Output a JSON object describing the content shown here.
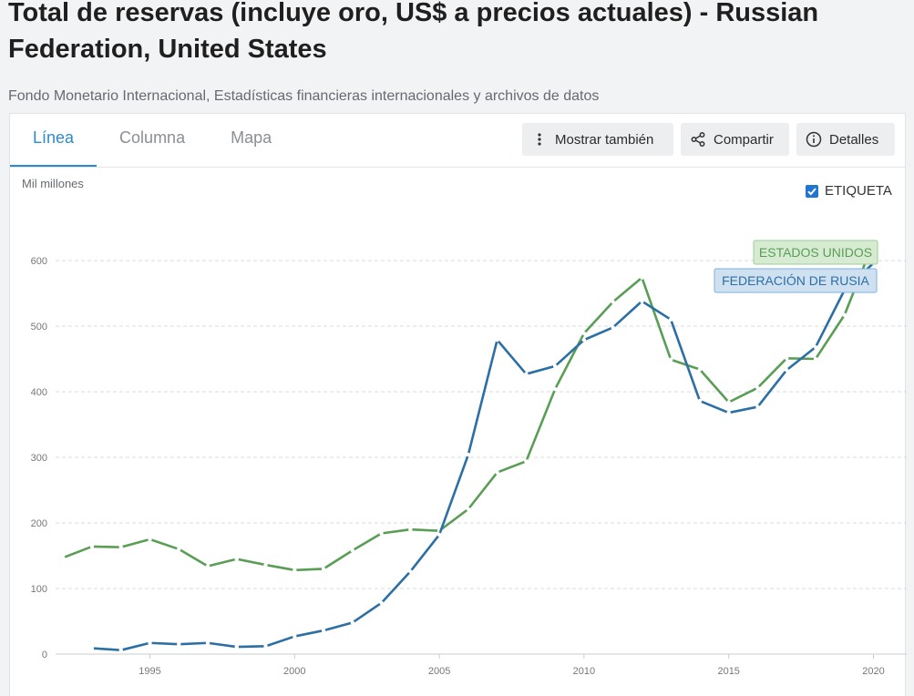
{
  "header": {
    "title": "Total de reservas (incluye oro, US$ a precios actuales) - Russian Federation, United States",
    "source": "Fondo Monetario Internacional, Estadísticas financieras internacionales y archivos de datos"
  },
  "tabs": [
    {
      "label": "Línea",
      "active": true
    },
    {
      "label": "Columna",
      "active": false
    },
    {
      "label": "Mapa",
      "active": false
    }
  ],
  "toolbar": {
    "show_also": "Mostrar también",
    "share": "Compartir",
    "details": "Detalles"
  },
  "label_toggle": {
    "label": "ETIQUETA",
    "checked": true
  },
  "colors": {
    "us": "#5a9e56",
    "ru": "#2c6fa5",
    "accent": "#2f8ac9"
  },
  "chart_data": {
    "type": "line",
    "ylabel": "Mil millones",
    "ylim": [
      0,
      600
    ],
    "yticks": [
      0,
      100,
      200,
      300,
      400,
      500,
      600
    ],
    "xticks": [
      1995,
      2000,
      2005,
      2010,
      2015,
      2020
    ],
    "xlim": [
      1992,
      2021
    ],
    "grid": true,
    "series": [
      {
        "name": "ESTADOS UNIDOS",
        "color": "#5a9e56",
        "x": [
          1992,
          1993,
          1994,
          1995,
          1996,
          1997,
          1998,
          1999,
          2000,
          2001,
          2002,
          2003,
          2004,
          2005,
          2006,
          2007,
          2008,
          2009,
          2010,
          2011,
          2012,
          2013,
          2014,
          2015,
          2016,
          2017,
          2018,
          2019,
          2020
        ],
        "values": [
          147,
          164,
          163,
          175,
          160,
          134,
          145,
          136,
          128,
          130,
          158,
          184,
          190,
          188,
          221,
          277,
          294,
          404,
          489,
          537,
          574,
          449,
          434,
          384,
          406,
          451,
          450,
          517,
          628
        ]
      },
      {
        "name": "FEDERACIÓN DE RUSIA",
        "color": "#2c6fa5",
        "x": [
          1993,
          1994,
          1995,
          1996,
          1997,
          1998,
          1999,
          2000,
          2001,
          2002,
          2003,
          2004,
          2005,
          2006,
          2007,
          2008,
          2009,
          2010,
          2011,
          2012,
          2013,
          2014,
          2015,
          2016,
          2017,
          2018,
          2019,
          2020
        ],
        "values": [
          9,
          6,
          17,
          15,
          17,
          11,
          12,
          27,
          36,
          48,
          78,
          126,
          182,
          304,
          479,
          427,
          439,
          479,
          498,
          538,
          510,
          386,
          368,
          377,
          433,
          468,
          555,
          596
        ]
      }
    ]
  }
}
